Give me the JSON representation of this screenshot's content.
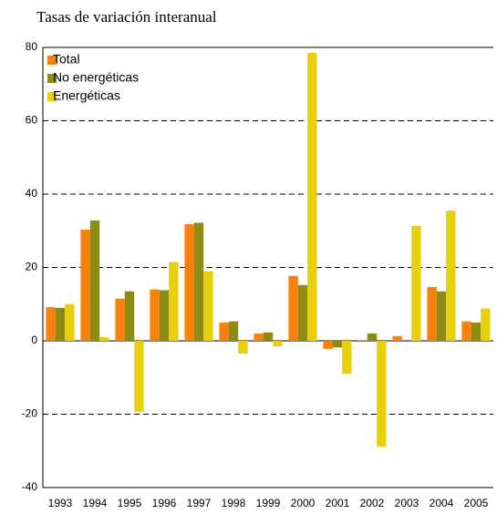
{
  "chart_data": {
    "type": "bar",
    "title": "Tasas de variación interanual",
    "categories": [
      "1993",
      "1994",
      "1995",
      "1996",
      "1997",
      "1998",
      "1999",
      "2000",
      "2001",
      "2002",
      "2003",
      "2004",
      "2005"
    ],
    "series": [
      {
        "name": "Total",
        "color": "#f7820a",
        "values": [
          9.2,
          30.3,
          11.5,
          14,
          31.8,
          5,
          2,
          17.7,
          -2.2,
          0.2,
          1.3,
          14.7,
          5.3
        ]
      },
      {
        "name": "No energéticas",
        "color": "#8c8c14",
        "values": [
          9,
          32.8,
          13.5,
          13.8,
          32.2,
          5.3,
          2.3,
          15.2,
          -1.8,
          2,
          0,
          13.5,
          5
        ]
      },
      {
        "name": "Energéticas",
        "color": "#e8d10a",
        "values": [
          10,
          1,
          -19.3,
          21.5,
          19,
          -3.5,
          -1.5,
          78.5,
          -9,
          -28.9,
          31.3,
          35.5,
          8.8
        ]
      }
    ],
    "ylim": [
      -40,
      80
    ],
    "yticks": [
      -40,
      -20,
      0,
      20,
      40,
      60,
      80
    ],
    "grid": true,
    "legend": "top-left"
  }
}
